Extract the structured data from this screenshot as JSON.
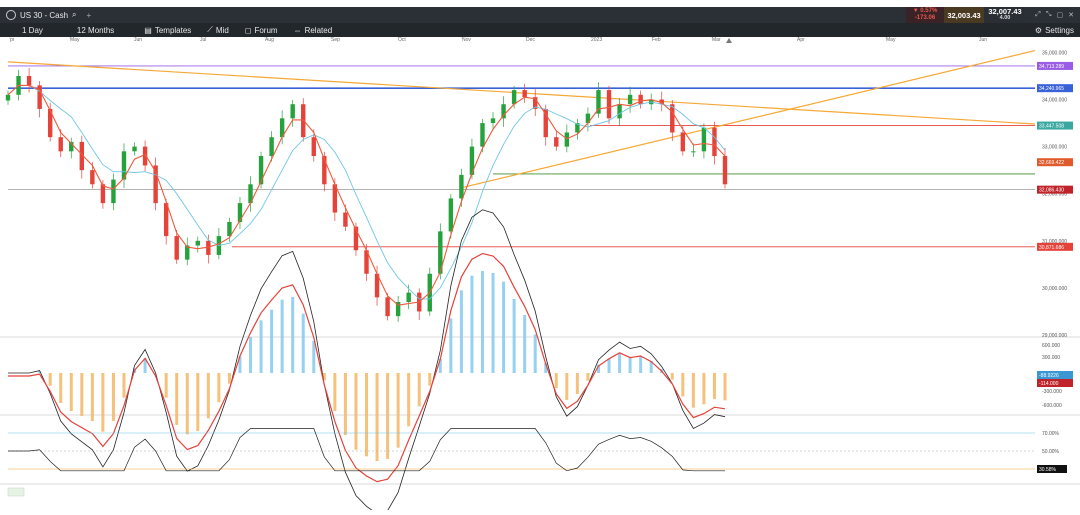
{
  "header": {
    "symbol": "US 30 - Cash",
    "change_pct": "▼ 0.57%",
    "change_abs": "-173.06",
    "bid": "32,003.43",
    "ask": "32,007.43",
    "spread": "4.00"
  },
  "toolbar": {
    "timeframe": "1 Day",
    "range": "12 Months",
    "templates": "Templates",
    "price_type": "Mid",
    "forum": "Forum",
    "related": "Related",
    "settings": "Settings"
  },
  "colors": {
    "candle_up": "#26a23c",
    "candle_down": "#e5423a",
    "ma_fast": "#f05a3c",
    "ma_slow": "#6ec6e6",
    "trendline": "#f4a836",
    "level_blue": "#3a62d8",
    "level_purple": "#9a5ce6",
    "level_red": "#e5423a",
    "level_green": "#3f8c2a"
  },
  "chart_data": [
    {
      "type": "candlestick",
      "x_ticks": [
        "pr",
        "May",
        "Jun",
        "Jul",
        "Aug",
        "Sep",
        "Oct",
        "Nov",
        "Dec",
        "2023",
        "Feb",
        "Mar",
        "Apr",
        "May",
        "Jun"
      ],
      "y_ticks": [
        "35,000.000",
        "34,000.000",
        "33,000.000",
        "32,000.000",
        "31,000.000",
        "30,000.000",
        "29,000.000"
      ],
      "ylim": [
        29000,
        35200
      ],
      "price_markers": [
        {
          "label": "34,713.289",
          "value": 34713,
          "color": "#9a5ce6"
        },
        {
          "label": "34,240.965",
          "value": 34241,
          "color": "#3a62d8"
        },
        {
          "label": "33,447.508",
          "value": 33447,
          "color": "#3aa7a0"
        },
        {
          "label": "32,669.422",
          "value": 32669,
          "color": "#e05a2c"
        },
        {
          "label": "32,086.430",
          "value": 32086,
          "color": "#c0242a"
        },
        {
          "label": "30,871.686",
          "value": 30872,
          "color": "#e5423a"
        }
      ],
      "horizontal_levels": [
        {
          "value": 34713,
          "color": "purple"
        },
        {
          "value": 34241,
          "color": "blue"
        },
        {
          "value": 33447,
          "color": "red"
        },
        {
          "value": 32420,
          "color": "green"
        },
        {
          "value": 32086,
          "color": "gray"
        },
        {
          "value": 30872,
          "color": "red"
        }
      ],
      "trendlines": [
        "descending from Apr 2022 to Mar 2023",
        "ascending support from Nov 2022 to Mar 2023"
      ],
      "series": [
        {
          "name": "close",
          "values": [
            34100,
            34500,
            34300,
            33800,
            33200,
            32900,
            33100,
            32500,
            32200,
            31800,
            32300,
            32900,
            33000,
            32600,
            31800,
            31100,
            30600,
            30900,
            31000,
            30700,
            31100,
            31400,
            31800,
            32200,
            32800,
            33200,
            33600,
            33900,
            33200,
            32800,
            32200,
            31600,
            31300,
            30800,
            30300,
            29800,
            29400,
            29700,
            29900,
            29500,
            30300,
            31200,
            31900,
            32400,
            33000,
            33500,
            33600,
            33900,
            34200,
            34050,
            33800,
            33200,
            33000,
            33300,
            33500,
            33700,
            34200,
            33600,
            33900,
            34100,
            33900,
            34000,
            33900,
            33300,
            32900,
            32900,
            33400,
            32800,
            32200
          ]
        }
      ]
    },
    {
      "type": "bar",
      "panel": "MACD",
      "y_ticks": [
        "600.000",
        "300.000",
        "-300.000",
        "-600.000"
      ],
      "price_markers": [
        {
          "label": "-88.9226",
          "color": "#3a97d4"
        },
        {
          "label": "-114.000",
          "color": "#c0242a"
        }
      ]
    },
    {
      "type": "line",
      "panel": "RSI",
      "y_ticks": [
        "70.00%",
        "50.00%"
      ],
      "price_markers": [
        {
          "label": "30.58%",
          "color": "#111111"
        }
      ],
      "levels": [
        70,
        50,
        30
      ]
    }
  ]
}
